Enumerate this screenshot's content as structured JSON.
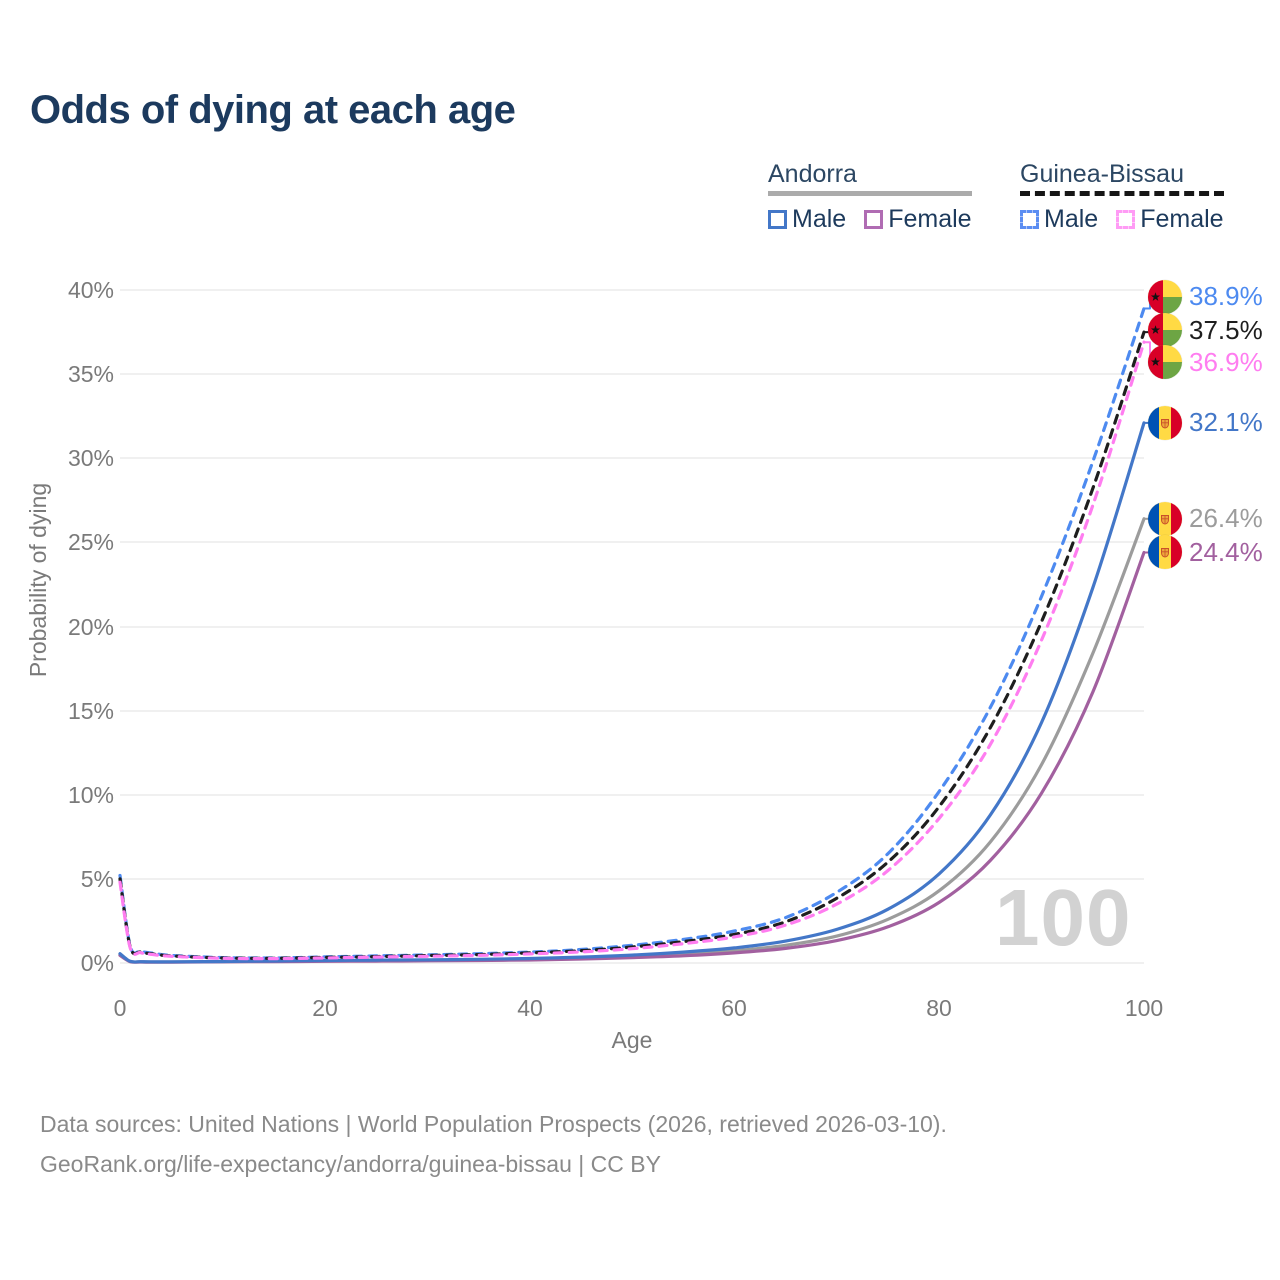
{
  "title": "Odds of dying at each age",
  "legend": {
    "groups": [
      {
        "country": "Andorra",
        "items": [
          {
            "label": "Male"
          },
          {
            "label": "Female"
          }
        ]
      },
      {
        "country": "Guinea-Bissau",
        "items": [
          {
            "label": "Male"
          },
          {
            "label": "Female"
          }
        ]
      }
    ]
  },
  "watermark": "100",
  "footer": {
    "line1": "Data sources: United Nations | World Population Prospects (2026, retrieved 2026-03-10).",
    "line2": "GeoRank.org/life-expectancy/andorra/guinea-bissau | CC BY"
  },
  "chart_data": {
    "type": "line",
    "title": "Odds of dying at each age",
    "xlabel": "Age",
    "ylabel": "Probability of dying",
    "xlim": [
      0,
      100
    ],
    "ylim_pct": [
      0,
      40
    ],
    "x_ticks": [
      "0",
      "20",
      "40",
      "60",
      "80",
      "100"
    ],
    "y_ticks": [
      "0%",
      "5%",
      "10%",
      "15%",
      "20%",
      "25%",
      "30%",
      "35%",
      "40%"
    ],
    "grid": true,
    "legend_position": "top-right",
    "ages": [
      0,
      1,
      2,
      3,
      5,
      10,
      15,
      20,
      25,
      30,
      35,
      40,
      45,
      50,
      55,
      60,
      65,
      70,
      75,
      80,
      85,
      90,
      95,
      100
    ],
    "series": [
      {
        "id": "guinea-bissau-male",
        "name": "Guinea-Bissau Male",
        "country": "Guinea-Bissau",
        "sex": "Male",
        "color": "#4d8af0",
        "dashed": true,
        "flag": "gw",
        "end_label": "38.9%",
        "end_value": 38.9,
        "label_pct": 39.6,
        "values": [
          5.2,
          1.0,
          0.7,
          0.6,
          0.45,
          0.32,
          0.3,
          0.36,
          0.42,
          0.48,
          0.55,
          0.65,
          0.8,
          1.05,
          1.4,
          1.9,
          2.7,
          4.2,
          6.5,
          10.2,
          15.2,
          21.8,
          29.8,
          38.9
        ]
      },
      {
        "id": "guinea-bissau-both",
        "name": "Guinea-Bissau Both sexes",
        "country": "Guinea-Bissau",
        "sex": "Both",
        "color": "#1e1e1e",
        "dashed": true,
        "flag": "gw",
        "end_label": "37.5%",
        "end_value": 37.5,
        "label_pct": 37.6,
        "values": [
          5.0,
          0.95,
          0.65,
          0.55,
          0.42,
          0.3,
          0.28,
          0.33,
          0.38,
          0.44,
          0.5,
          0.6,
          0.73,
          0.95,
          1.27,
          1.7,
          2.45,
          3.85,
          6.0,
          9.3,
          14.0,
          20.3,
          28.2,
          37.5
        ]
      },
      {
        "id": "guinea-bissau-female",
        "name": "Guinea-Bissau Female",
        "country": "Guinea-Bissau",
        "sex": "Female",
        "color": "#ff7df0",
        "dashed": true,
        "flag": "gw",
        "end_label": "36.9%",
        "end_value": 36.9,
        "label_pct": 35.7,
        "values": [
          4.8,
          0.9,
          0.62,
          0.52,
          0.4,
          0.28,
          0.26,
          0.3,
          0.35,
          0.4,
          0.45,
          0.54,
          0.66,
          0.85,
          1.15,
          1.55,
          2.25,
          3.5,
          5.5,
          8.6,
          13.0,
          19.2,
          27.2,
          36.9
        ]
      },
      {
        "id": "andorra-male",
        "name": "Andorra Male",
        "country": "Andorra",
        "sex": "Male",
        "color": "#4377c8",
        "dashed": false,
        "flag": "ad",
        "end_label": "32.1%",
        "end_value": 32.1,
        "label_pct": 32.1,
        "values": [
          0.55,
          0.1,
          0.08,
          0.07,
          0.07,
          0.09,
          0.12,
          0.15,
          0.17,
          0.19,
          0.22,
          0.27,
          0.35,
          0.47,
          0.65,
          0.9,
          1.3,
          2.0,
          3.2,
          5.3,
          8.8,
          14.3,
          22.3,
          32.1
        ]
      },
      {
        "id": "andorra-both",
        "name": "Andorra Both sexes",
        "country": "Andorra",
        "sex": "Both",
        "color": "#9c9c9c",
        "dashed": false,
        "flag": "ad",
        "end_label": "26.4%",
        "end_value": 26.4,
        "label_pct": 26.4,
        "values": [
          0.5,
          0.09,
          0.07,
          0.06,
          0.06,
          0.08,
          0.1,
          0.12,
          0.14,
          0.16,
          0.18,
          0.22,
          0.29,
          0.39,
          0.53,
          0.73,
          1.05,
          1.6,
          2.6,
          4.3,
          7.2,
          11.8,
          18.4,
          26.4
        ]
      },
      {
        "id": "andorra-female",
        "name": "Andorra Female",
        "country": "Andorra",
        "sex": "Female",
        "color": "#a2609f",
        "dashed": false,
        "flag": "ad",
        "end_label": "24.4%",
        "end_value": 24.4,
        "label_pct": 24.4,
        "values": [
          0.45,
          0.08,
          0.06,
          0.05,
          0.05,
          0.07,
          0.08,
          0.1,
          0.11,
          0.13,
          0.15,
          0.18,
          0.24,
          0.32,
          0.43,
          0.6,
          0.87,
          1.33,
          2.15,
          3.6,
          6.1,
          10.1,
          16.1,
          24.4
        ]
      }
    ]
  }
}
